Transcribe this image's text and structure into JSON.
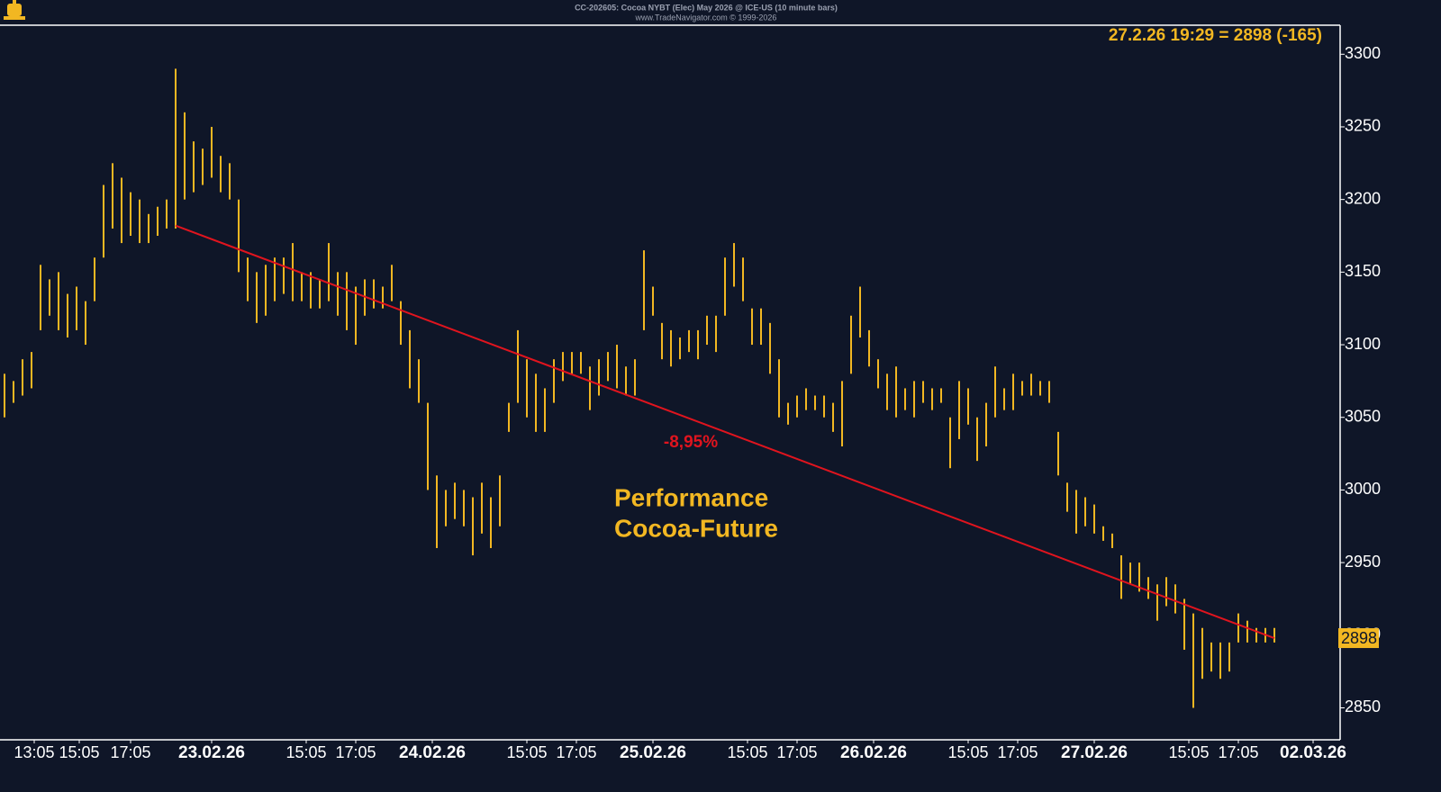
{
  "chart_data": {
    "type": "ohlc",
    "title": "CC-202605: Cocoa NYBT (Elec) May 2026 @ ICE-US (10 minute bars)",
    "subtitle": "www.TradeNavigator.com © 1999-2026",
    "quote": "27.2.26 19:29 = 2898 (-165)",
    "last_value": 2898,
    "color": "#f2b722",
    "low": [
      3050,
      3060,
      3065,
      3070,
      3110,
      3120,
      3110,
      3105,
      3110,
      3100,
      3130,
      3160,
      3180,
      3170,
      3175,
      3170,
      3170,
      3175,
      3180,
      3180,
      3200,
      3205,
      3210,
      3215,
      3205,
      3200,
      3150,
      3130,
      3115,
      3120,
      3130,
      3135,
      3130,
      3130,
      3125,
      3125,
      3130,
      3120,
      3110,
      3100,
      3120,
      3125,
      3125,
      3130,
      3100,
      3070,
      3060,
      3000,
      2960,
      2975,
      2980,
      2975,
      2955,
      2970,
      2960,
      2975,
      3040,
      3060,
      3050,
      3040,
      3040,
      3060,
      3075,
      3080,
      3080,
      3055,
      3065,
      3075,
      3070,
      3065,
      3065,
      3110,
      3120,
      3090,
      3085,
      3090,
      3095,
      3090,
      3100,
      3095,
      3120,
      3140,
      3130,
      3100,
      3100,
      3080,
      3050,
      3045,
      3050,
      3055,
      3055,
      3050,
      3040,
      3030,
      3080,
      3105,
      3085,
      3070,
      3055,
      3050,
      3055,
      3050,
      3060,
      3055,
      3060,
      3015,
      3035,
      3045,
      3020,
      3030,
      3050,
      3055,
      3055,
      3065,
      3065,
      3065,
      3060,
      3010,
      2985,
      2970,
      2975,
      2970,
      2965,
      2960,
      2925,
      2935,
      2930,
      2925,
      2910,
      2920,
      2915,
      2890,
      2850,
      2870,
      2875,
      2870,
      2875,
      2895,
      2895,
      2895,
      2895,
      2895
    ],
    "high": [
      3080,
      3075,
      3090,
      3095,
      3155,
      3145,
      3150,
      3135,
      3140,
      3130,
      3160,
      3210,
      3225,
      3215,
      3205,
      3200,
      3190,
      3195,
      3200,
      3290,
      3260,
      3240,
      3235,
      3250,
      3230,
      3225,
      3200,
      3160,
      3150,
      3155,
      3160,
      3160,
      3170,
      3150,
      3150,
      3145,
      3170,
      3150,
      3150,
      3140,
      3145,
      3145,
      3140,
      3155,
      3130,
      3110,
      3090,
      3060,
      3010,
      3000,
      3005,
      3000,
      2995,
      3005,
      2995,
      3010,
      3060,
      3110,
      3090,
      3080,
      3070,
      3090,
      3095,
      3095,
      3095,
      3085,
      3090,
      3095,
      3100,
      3085,
      3090,
      3165,
      3140,
      3115,
      3110,
      3105,
      3110,
      3110,
      3120,
      3120,
      3160,
      3170,
      3160,
      3125,
      3125,
      3115,
      3090,
      3060,
      3065,
      3070,
      3065,
      3065,
      3060,
      3075,
      3120,
      3140,
      3110,
      3090,
      3080,
      3085,
      3070,
      3075,
      3075,
      3070,
      3070,
      3050,
      3075,
      3070,
      3050,
      3060,
      3085,
      3070,
      3080,
      3075,
      3080,
      3075,
      3075,
      3040,
      3005,
      3000,
      2995,
      2990,
      2975,
      2970,
      2955,
      2950,
      2950,
      2940,
      2935,
      2940,
      2935,
      2925,
      2915,
      2905,
      2895,
      2895,
      2895,
      2915,
      2910,
      2905,
      2905,
      2905
    ],
    "xlim": [
      -0.5,
      148.3
    ],
    "ylim": [
      2828,
      3320
    ],
    "yticks": [
      2850,
      2900,
      2950,
      3000,
      3050,
      3100,
      3150,
      3200,
      3250,
      3300
    ],
    "xticks": [
      {
        "value": 3.3,
        "label": "13:05"
      },
      {
        "value": 8.3,
        "label": "15:05"
      },
      {
        "value": 14,
        "label": "17:05"
      },
      {
        "value": 23,
        "label": "23.02.26"
      },
      {
        "value": 33.5,
        "label": "15:05"
      },
      {
        "value": 39,
        "label": "17:05"
      },
      {
        "value": 47.5,
        "label": "24.02.26"
      },
      {
        "value": 58,
        "label": "15:05"
      },
      {
        "value": 63.5,
        "label": "17:05"
      },
      {
        "value": 72,
        "label": "25.02.26"
      },
      {
        "value": 82.5,
        "label": "15:05"
      },
      {
        "value": 88,
        "label": "17:05"
      },
      {
        "value": 96.5,
        "label": "26.02.26"
      },
      {
        "value": 107,
        "label": "15:05"
      },
      {
        "value": 112.5,
        "label": "17:05"
      },
      {
        "value": 121,
        "label": "27.02.26"
      },
      {
        "value": 131.5,
        "label": "15:05"
      },
      {
        "value": 137,
        "label": "17:05"
      },
      {
        "value": 145.3,
        "label": "02.03.26"
      }
    ],
    "trend_line": {
      "x": [
        19,
        141
      ],
      "y": [
        3182,
        2898
      ],
      "color": "#e0141e",
      "label": "-8,95%"
    },
    "annotation": [
      "Performance",
      "Cocoa-Future"
    ]
  }
}
